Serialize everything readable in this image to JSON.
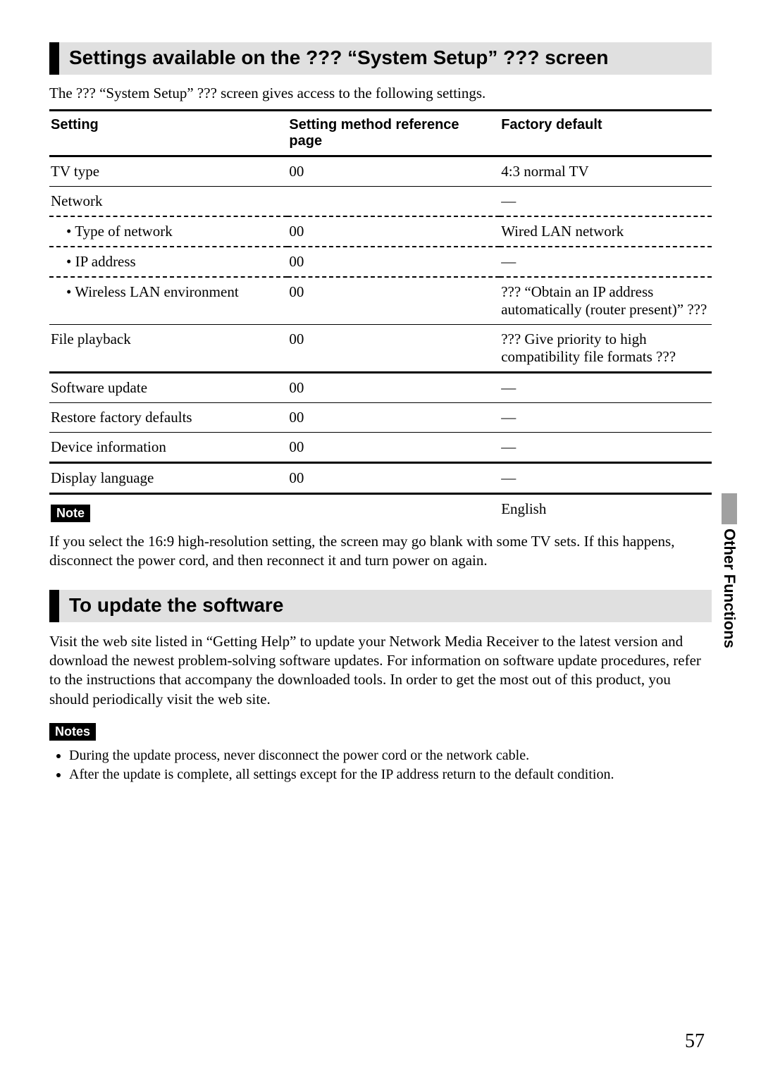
{
  "section1": {
    "heading": "Settings available on the ??? “System Setup” ??? screen",
    "intro": "The ??? “System Setup” ??? screen gives access to the following settings."
  },
  "table": {
    "headers": {
      "c1": "Setting",
      "c2": "Setting method reference page",
      "c3": "Factory default"
    },
    "rows": {
      "tv_type": {
        "c1": "TV type",
        "c2": "00",
        "c3": "4:3 normal TV"
      },
      "network": {
        "c1": "Network",
        "c2": "",
        "c3": "—"
      },
      "net_type": {
        "c1": "• Type of network",
        "c2": "00",
        "c3": "Wired LAN network"
      },
      "net_ip": {
        "c1": "• IP address",
        "c2": "00",
        "c3": "—"
      },
      "net_wlan": {
        "c1": "• Wireless LAN environment",
        "c2": "00",
        "c3": "??? “Obtain an IP address automatically (router present)” ???"
      },
      "file_playback": {
        "c1": "File playback",
        "c2": "00",
        "c3": "??? Give priority to high compatibility file formats ???"
      },
      "sw_update": {
        "c1": "Software update",
        "c2": "00",
        "c3": "—"
      },
      "restore": {
        "c1": "Restore factory defaults",
        "c2": "00",
        "c3": "—"
      },
      "dev_info": {
        "c1": "Device information",
        "c2": "00",
        "c3": "—"
      },
      "disp_lang": {
        "c1": "Display language",
        "c2": "00",
        "c3": "—"
      },
      "english": {
        "c1": "",
        "c2": "",
        "c3": "English"
      }
    }
  },
  "note1": {
    "label": "Note",
    "text": "If you select the 16:9 high-resolution setting, the screen may go blank with some TV sets. If this happens, disconnect the power cord, and then reconnect it and turn power on again."
  },
  "section2": {
    "heading": "To update the software",
    "paragraph": "Visit the web site listed in “Getting Help” to update your Network Media Receiver to the latest version and download the newest problem-solving software updates. For information on software update procedures, refer to the instructions that accompany the downloaded tools. In order to get the most out of this product, you should periodically visit the web site."
  },
  "notes2": {
    "label": "Notes",
    "items": [
      "During the update process, never disconnect the power cord or the network cable.",
      "After the update is complete, all settings except for the IP address return to the default condition."
    ]
  },
  "sideTab": "Other Functions",
  "pageNumber": "57",
  "styles": {
    "heading_bg": "#e0e0e0",
    "heading_border": "#000000",
    "badge_bg": "#000000",
    "badge_fg": "#ffffff",
    "tab_block": "#a0a0a0"
  }
}
